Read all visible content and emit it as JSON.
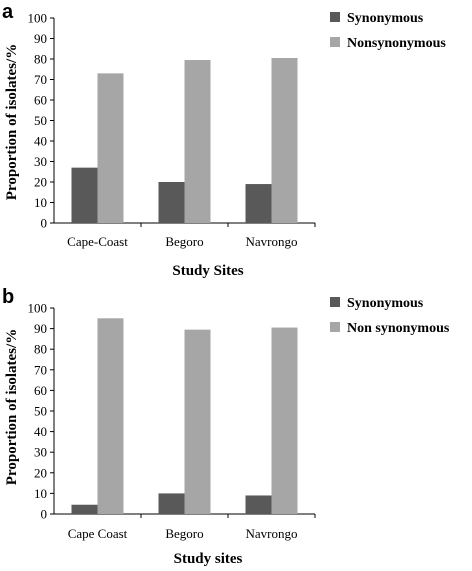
{
  "chart_data": [
    {
      "panel": "a",
      "type": "bar",
      "categories": [
        "Cape-Coast",
        "Begoro",
        "Navrongo"
      ],
      "series": [
        {
          "name": "Synonymous",
          "values": [
            27,
            20,
            19
          ],
          "color": "#595959"
        },
        {
          "name": "Nonsynonymous",
          "values": [
            73,
            79.5,
            80.5
          ],
          "color": "#a6a6a6"
        }
      ],
      "xlabel": "Study Sites",
      "ylabel": "Proportion of isolates/%",
      "ylim": [
        0,
        100
      ],
      "yticks": [
        0,
        10,
        20,
        30,
        40,
        50,
        60,
        70,
        80,
        90,
        100
      ],
      "legend": "top-right",
      "grid": false
    },
    {
      "panel": "b",
      "type": "bar",
      "categories": [
        "Cape Coast",
        "Begoro",
        "Navrongo"
      ],
      "series": [
        {
          "name": "Synonymous",
          "values": [
            4.5,
            10,
            9
          ],
          "color": "#595959"
        },
        {
          "name": "Non synonymous",
          "values": [
            95,
            89.5,
            90.5
          ],
          "color": "#a6a6a6"
        }
      ],
      "xlabel": "Study sites",
      "ylabel": "Proportion of isolates/%",
      "ylim": [
        0,
        100
      ],
      "yticks": [
        0,
        10,
        20,
        30,
        40,
        50,
        60,
        70,
        80,
        90,
        100
      ],
      "legend": "top-right",
      "grid": false
    }
  ]
}
